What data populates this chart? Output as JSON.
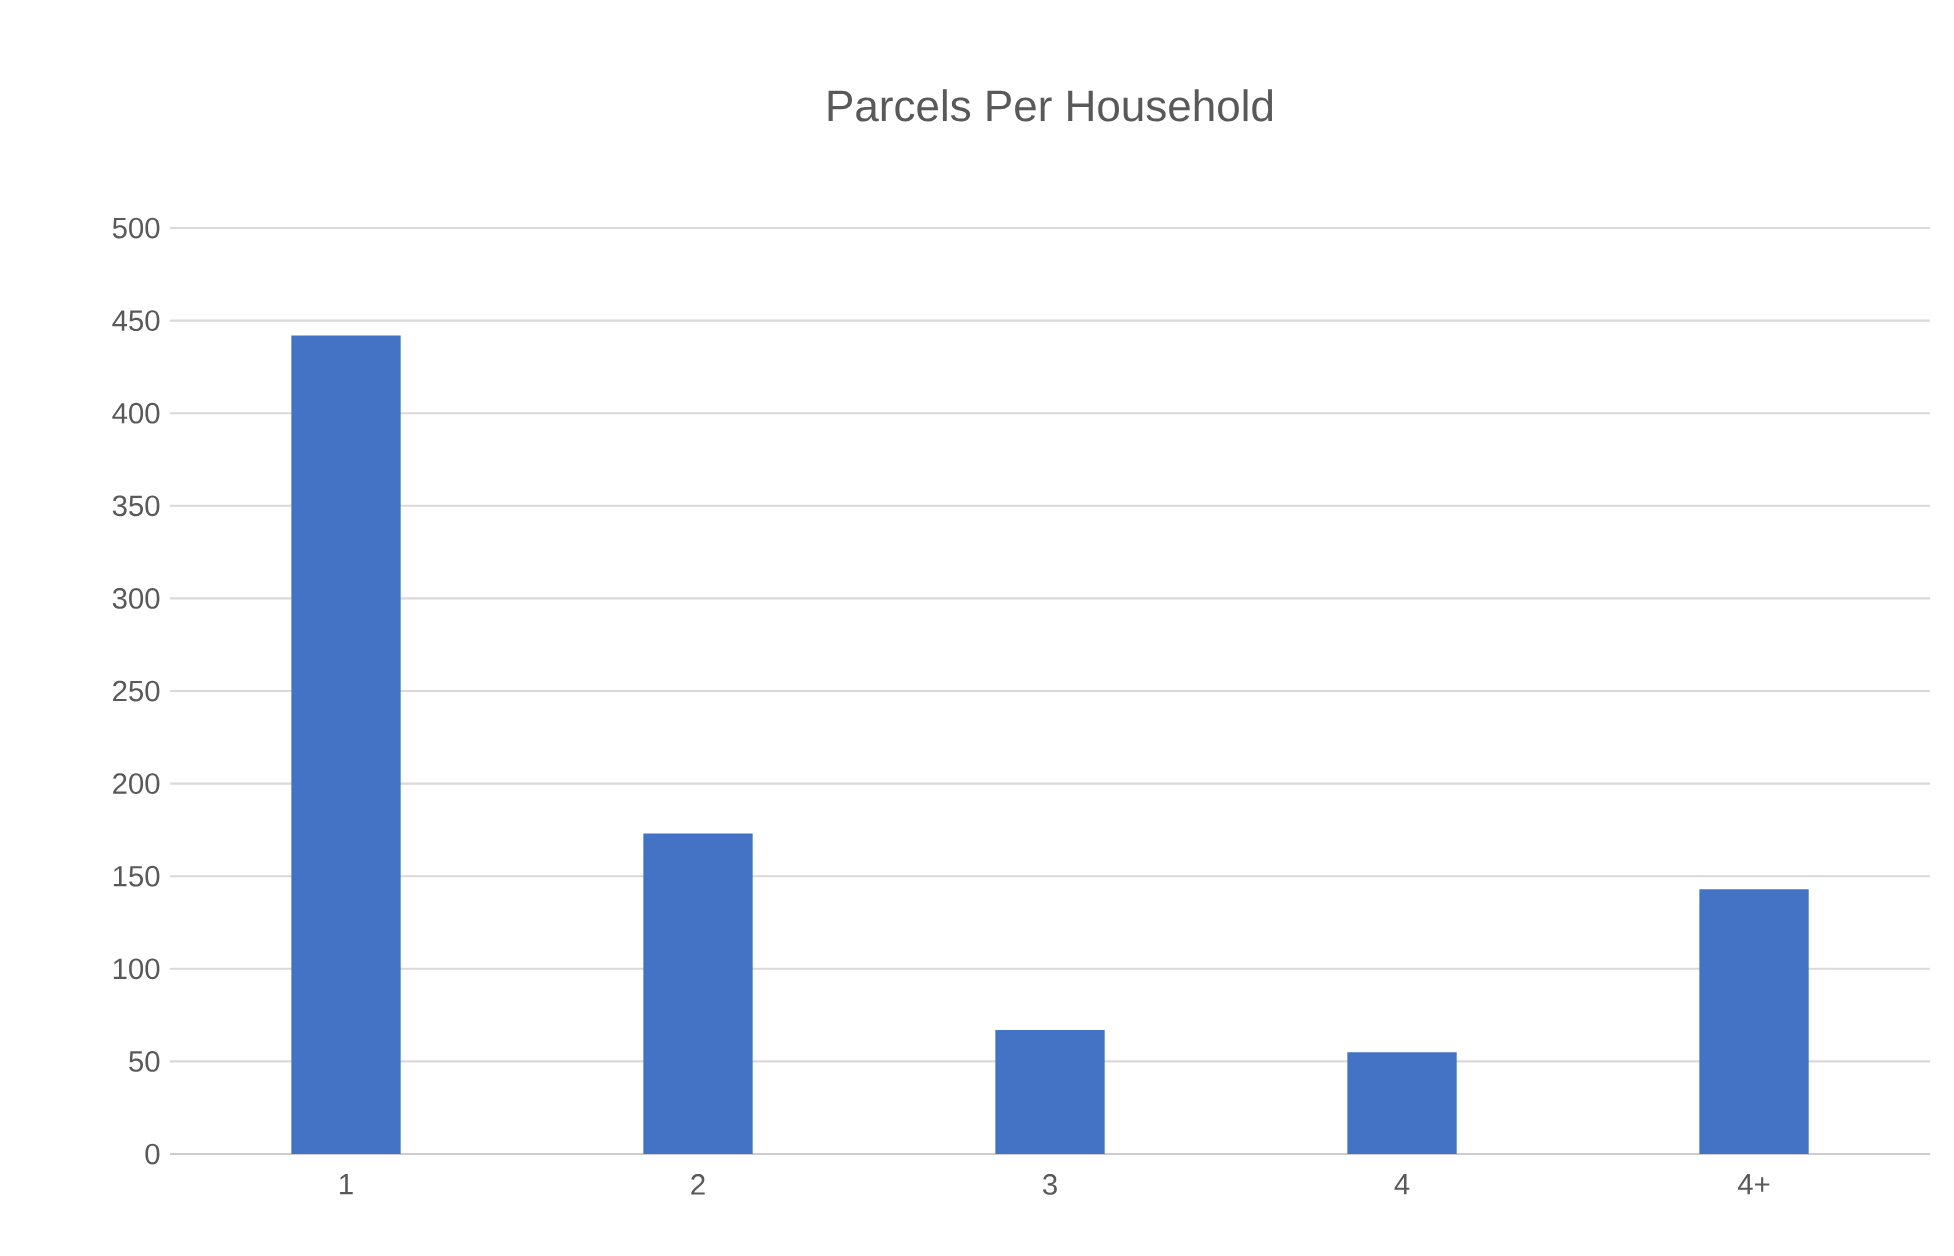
{
  "chart_data": {
    "type": "bar",
    "title": "Parcels Per Household",
    "categories": [
      "1",
      "2",
      "3",
      "4",
      "4+"
    ],
    "values": [
      442,
      173,
      67,
      55,
      143
    ],
    "color": "#4472c4",
    "ylim": [
      0,
      500
    ],
    "yticks": [
      0,
      50,
      100,
      150,
      200,
      250,
      300,
      350,
      400,
      450,
      500
    ],
    "grid": "y"
  }
}
